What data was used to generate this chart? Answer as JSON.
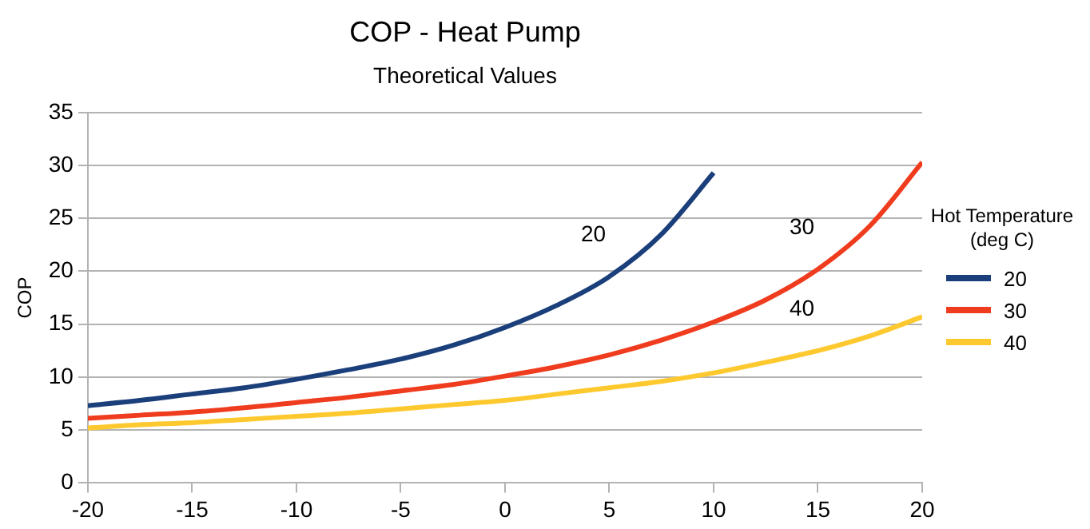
{
  "chart_data": {
    "type": "line",
    "title": "COP - Heat Pump",
    "subtitle": "Theoretical Values",
    "ylabel": "COP",
    "legend_title": "Hot Temperature (deg C)",
    "x": [
      -20,
      -17.5,
      -15,
      -12.5,
      -10,
      -7.5,
      -5,
      -2.5,
      0,
      2.5,
      5,
      7.5,
      10,
      12.5,
      15,
      17.5,
      20
    ],
    "series": [
      {
        "name": "20",
        "color": "#1a3f7a",
        "values": [
          7.3,
          7.8,
          8.4,
          9,
          9.8,
          10.7,
          11.7,
          13,
          14.7,
          16.8,
          19.5,
          23.5,
          29.3,
          null,
          null,
          null,
          null
        ]
      },
      {
        "name": "30",
        "color": "#f03c1e",
        "values": [
          6.1,
          6.4,
          6.7,
          7.1,
          7.6,
          8.1,
          8.7,
          9.3,
          10.1,
          11,
          12.1,
          13.5,
          15.2,
          17.3,
          20.2,
          24.3,
          30.3
        ]
      },
      {
        "name": "40",
        "color": "#fdc92e",
        "values": [
          5.2,
          5.5,
          5.7,
          6,
          6.3,
          6.6,
          7,
          7.4,
          7.8,
          8.4,
          9,
          9.6,
          10.4,
          11.4,
          12.5,
          13.9,
          15.7
        ]
      }
    ],
    "xlim": [
      -20,
      20
    ],
    "xticks": [
      -20,
      -15,
      -10,
      -5,
      0,
      5,
      10,
      15,
      20
    ],
    "ylim": [
      0,
      35
    ],
    "yticks": [
      0,
      5,
      10,
      15,
      20,
      25,
      30,
      35
    ],
    "grid": "y",
    "legend": "right",
    "marker": "none",
    "line_style": "solid"
  }
}
